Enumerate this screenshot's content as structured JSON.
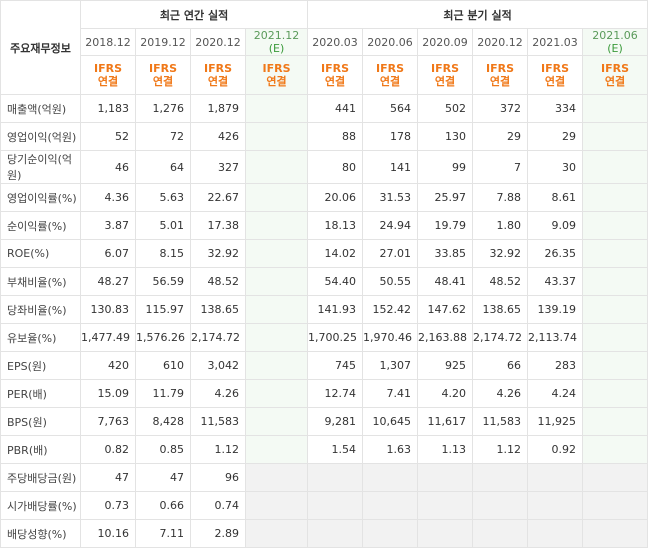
{
  "table": {
    "row_header_title": "주요재무정보",
    "annual_group": "최근 연간 실적",
    "quarter_group": "최근 분기 실적",
    "annual_periods": [
      "2018.12",
      "2019.12",
      "2020.12"
    ],
    "annual_estimate": {
      "period": "2021.12",
      "mark": "(E)"
    },
    "quarter_periods": [
      "2020.03",
      "2020.06",
      "2020.09",
      "2020.12",
      "2021.03"
    ],
    "quarter_estimate": {
      "period": "2021.06",
      "mark": "(E)"
    },
    "ifrs_line1": "IFRS",
    "ifrs_line2": "연결",
    "rows": [
      {
        "label": "매출액(억원)",
        "annual": [
          "1,183",
          "1,276",
          "1,879"
        ],
        "quarter": [
          "441",
          "564",
          "502",
          "372",
          "334"
        ]
      },
      {
        "label": "영업이익(억원)",
        "annual": [
          "52",
          "72",
          "426"
        ],
        "quarter": [
          "88",
          "178",
          "130",
          "29",
          "29"
        ]
      },
      {
        "label": "당기순이익(억원)",
        "annual": [
          "46",
          "64",
          "327"
        ],
        "quarter": [
          "80",
          "141",
          "99",
          "7",
          "30"
        ]
      },
      {
        "label": "영업이익률(%)",
        "annual": [
          "4.36",
          "5.63",
          "22.67"
        ],
        "quarter": [
          "20.06",
          "31.53",
          "25.97",
          "7.88",
          "8.61"
        ]
      },
      {
        "label": "순이익률(%)",
        "annual": [
          "3.87",
          "5.01",
          "17.38"
        ],
        "quarter": [
          "18.13",
          "24.94",
          "19.79",
          "1.80",
          "9.09"
        ]
      },
      {
        "label": "ROE(%)",
        "annual": [
          "6.07",
          "8.15",
          "32.92"
        ],
        "quarter": [
          "14.02",
          "27.01",
          "33.85",
          "32.92",
          "26.35"
        ]
      },
      {
        "label": "부채비율(%)",
        "annual": [
          "48.27",
          "56.59",
          "48.52"
        ],
        "quarter": [
          "54.40",
          "50.55",
          "48.41",
          "48.52",
          "43.37"
        ]
      },
      {
        "label": "당좌비율(%)",
        "annual": [
          "130.83",
          "115.97",
          "138.65"
        ],
        "quarter": [
          "141.93",
          "152.42",
          "147.62",
          "138.65",
          "139.19"
        ]
      },
      {
        "label": "유보율(%)",
        "annual": [
          "1,477.49",
          "1,576.26",
          "2,174.72"
        ],
        "quarter": [
          "1,700.25",
          "1,970.46",
          "2,163.88",
          "2,174.72",
          "2,113.74"
        ]
      },
      {
        "label": "EPS(원)",
        "annual": [
          "420",
          "610",
          "3,042"
        ],
        "quarter": [
          "745",
          "1,307",
          "925",
          "66",
          "283"
        ]
      },
      {
        "label": "PER(배)",
        "annual": [
          "15.09",
          "11.79",
          "4.26"
        ],
        "quarter": [
          "12.74",
          "7.41",
          "4.20",
          "4.26",
          "4.24"
        ]
      },
      {
        "label": "BPS(원)",
        "annual": [
          "7,763",
          "8,428",
          "11,583"
        ],
        "quarter": [
          "9,281",
          "10,645",
          "11,617",
          "11,583",
          "11,925"
        ]
      },
      {
        "label": "PBR(배)",
        "annual": [
          "0.82",
          "0.85",
          "1.12"
        ],
        "quarter": [
          "1.54",
          "1.63",
          "1.13",
          "1.12",
          "0.92"
        ]
      },
      {
        "label": "주당배당금(원)",
        "annual": [
          "47",
          "47",
          "96"
        ],
        "quarter": [
          "",
          "",
          "",
          "",
          ""
        ]
      },
      {
        "label": "시가배당률(%)",
        "annual": [
          "0.73",
          "0.66",
          "0.74"
        ],
        "quarter": [
          "",
          "",
          "",
          "",
          ""
        ]
      },
      {
        "label": "배당성향(%)",
        "annual": [
          "10.16",
          "7.11",
          "2.89"
        ],
        "quarter": [
          "",
          "",
          "",
          "",
          ""
        ]
      }
    ]
  }
}
